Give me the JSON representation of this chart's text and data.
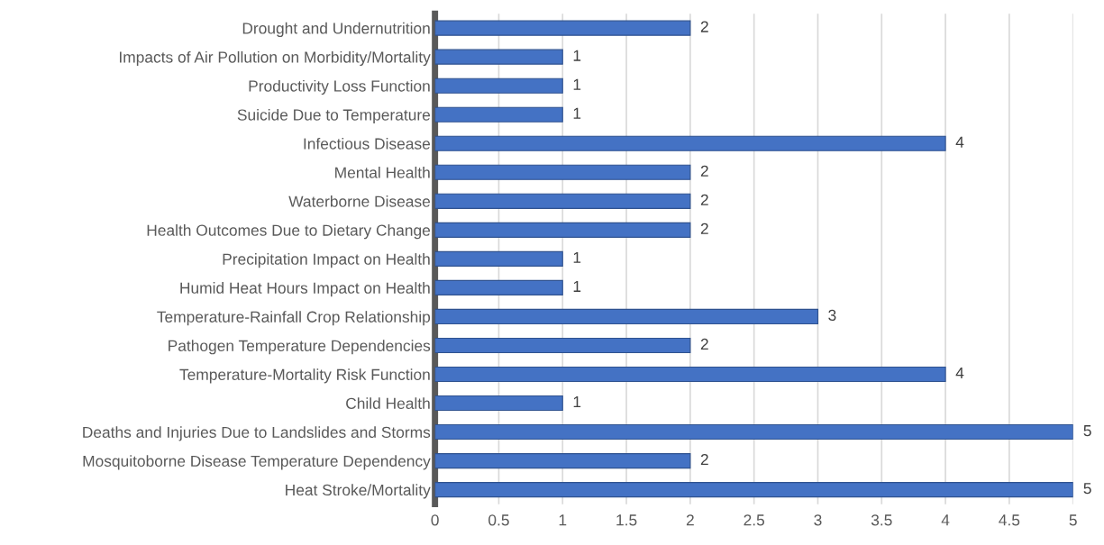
{
  "chart_data": {
    "type": "bar",
    "orientation": "horizontal",
    "categories": [
      "Drought and Undernutrition",
      "Impacts of Air Pollution on Morbidity/Mortality",
      "Productivity Loss Function",
      "Suicide Due to Temperature",
      "Infectious Disease",
      "Mental Health",
      "Waterborne Disease",
      "Health Outcomes Due to Dietary Change",
      "Precipitation Impact on Health",
      "Humid Heat Hours Impact on Health",
      "Temperature-Rainfall Crop Relationship",
      "Pathogen Temperature Dependencies",
      "Temperature-Mortality Risk Function",
      "Child Health",
      "Deaths and Injuries Due to Landslides and Storms",
      "Mosquitoborne Disease Temperature Dependency",
      "Heat Stroke/Mortality"
    ],
    "values": [
      2,
      1,
      1,
      1,
      4,
      2,
      2,
      2,
      1,
      1,
      3,
      2,
      4,
      1,
      5,
      2,
      5
    ],
    "color": "#4472c4",
    "xlim": [
      0,
      5
    ],
    "xticks": [
      0,
      0.5,
      1,
      1.5,
      2,
      2.5,
      3,
      3.5,
      4,
      4.5,
      5
    ],
    "grid": "x",
    "data_labels": true
  }
}
